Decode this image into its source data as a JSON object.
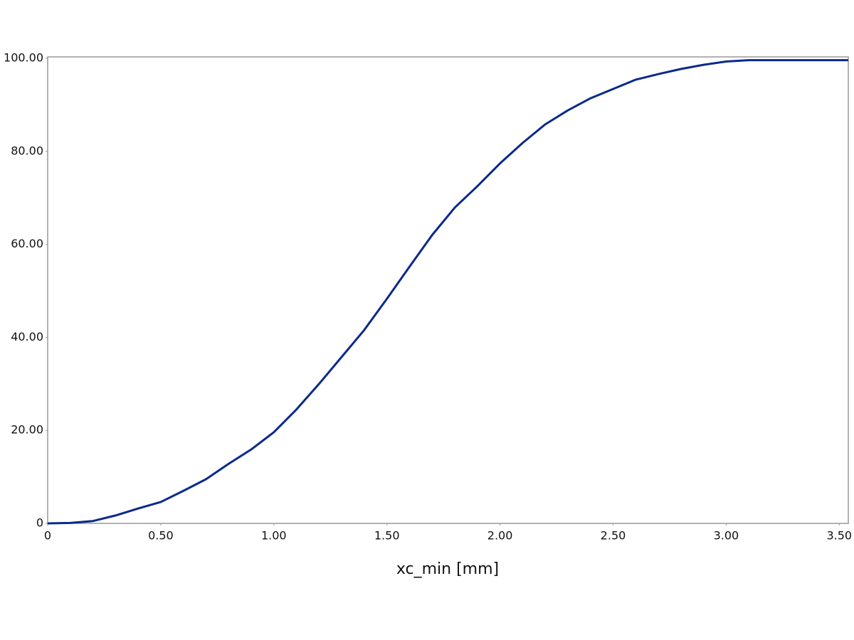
{
  "chart_data": {
    "type": "line",
    "x_label": "xc_min [mm]",
    "xlim": [
      0,
      3.54
    ],
    "ylim": [
      0,
      100.3
    ],
    "xticks": [
      0,
      {
        "value": 0.5,
        "label": "0.50"
      },
      {
        "value": 1,
        "label": "1.00"
      },
      {
        "value": 1.5,
        "label": "1.50"
      },
      {
        "value": 2,
        "label": "2.00"
      },
      {
        "value": 2.5,
        "label": "2.50"
      },
      {
        "value": 3,
        "label": "3.00"
      },
      {
        "value": 3.5,
        "label": "3.50"
      }
    ],
    "yticks": [
      0,
      {
        "value": 20,
        "label": "20.00"
      },
      {
        "value": 40,
        "label": "40.00"
      },
      {
        "value": 60,
        "label": "60.00"
      },
      {
        "value": 80,
        "label": "80.00"
      },
      {
        "value": 100,
        "label": "100.00"
      }
    ],
    "grid": false,
    "x": [
      0,
      0.1,
      0.2,
      0.3,
      0.4,
      0.5,
      0.6,
      0.7,
      0.8,
      0.9,
      1.0,
      1.1,
      1.2,
      1.3,
      1.4,
      1.5,
      1.6,
      1.7,
      1.8,
      1.9,
      2.0,
      2.1,
      2.2,
      2.3,
      2.4,
      2.5,
      2.6,
      2.7,
      2.8,
      2.9,
      3.0,
      3.1,
      3.54
    ],
    "series": [
      {
        "color": "#0a2a8a",
        "values": [
          0,
          0.1,
          0.5,
          1.7,
          3.2,
          4.6,
          7,
          9.5,
          12.8,
          15.9,
          19.6,
          24.5,
          30,
          35.8,
          41.6,
          48.3,
          55.2,
          62,
          67.9,
          72.5,
          77.4,
          81.8,
          85.8,
          88.8,
          91.4,
          93.4,
          95.4,
          96.6,
          97.7,
          98.6,
          99.3,
          99.6,
          99.6
        ]
      }
    ]
  }
}
